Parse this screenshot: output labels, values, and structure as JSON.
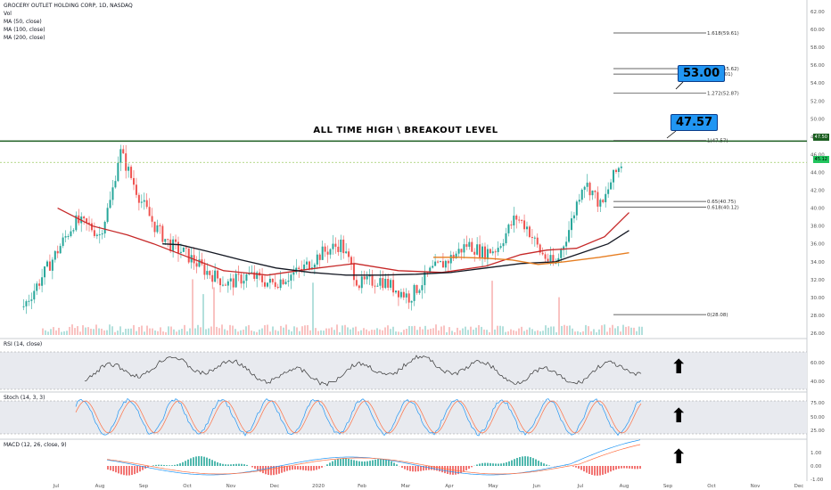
{
  "header": {
    "symbol_line": "GROCERY OUTLET HOLDING CORP, 1D, NASDAQ",
    "vol_label": "Vol",
    "ma50_label": "MA (50, close)",
    "ma100_label": "MA (100, close)",
    "ma200_label": "MA (200, close)"
  },
  "annotations": {
    "banner": "ALL TIME HIGH \\ BREAKOUT LEVEL",
    "callout_high": "53.00",
    "callout_breakout": "47.57"
  },
  "price_tags": {
    "breakout": "47.50",
    "last": "45.12"
  },
  "panes": {
    "rsi_label": "RSI (14, close)",
    "stoch_label": "Stoch (14, 3, 3)",
    "macd_label": "MACD (12, 26, close, 9)"
  },
  "colors": {
    "up": "#26a69a",
    "down": "#ef5350",
    "ma50": "#c62828",
    "ma100": "#131722",
    "ma200": "#e67e22",
    "breakout_line": "#1b5e20",
    "band": "#e8eaef",
    "callout": "#2196f3"
  },
  "chart_data": {
    "type": "candlestick",
    "x_ticks": [
      "Jul",
      "Aug",
      "Sep",
      "Oct",
      "Nov",
      "Dec",
      "2020",
      "Feb",
      "Mar",
      "Apr",
      "May",
      "Jun",
      "Jul",
      "Aug",
      "Sep",
      "Oct",
      "Nov",
      "Dec"
    ],
    "y_ticks": [
      26,
      28,
      30,
      32,
      34,
      36,
      38,
      40,
      42,
      44,
      46,
      48,
      50,
      52,
      54,
      56,
      58,
      60,
      62
    ],
    "y_range": [
      25.5,
      63
    ],
    "close_keypoints": [
      {
        "x": "2019-06-20",
        "y": 29
      },
      {
        "x": "2019-07-05",
        "y": 33
      },
      {
        "x": "2019-07-25",
        "y": 38.5
      },
      {
        "x": "2019-08-05",
        "y": 38
      },
      {
        "x": "2019-08-12",
        "y": 37
      },
      {
        "x": "2019-08-20",
        "y": 41
      },
      {
        "x": "2019-08-26",
        "y": 46.5
      },
      {
        "x": "2019-09-02",
        "y": 44
      },
      {
        "x": "2019-09-10",
        "y": 41
      },
      {
        "x": "2019-09-20",
        "y": 38
      },
      {
        "x": "2019-09-30",
        "y": 36
      },
      {
        "x": "2019-10-10",
        "y": 35
      },
      {
        "x": "2019-10-25",
        "y": 33
      },
      {
        "x": "2019-11-10",
        "y": 31.5
      },
      {
        "x": "2019-11-25",
        "y": 32.5
      },
      {
        "x": "2019-12-10",
        "y": 31.5
      },
      {
        "x": "2019-12-30",
        "y": 33
      },
      {
        "x": "2020-01-15",
        "y": 35
      },
      {
        "x": "2020-01-28",
        "y": 36
      },
      {
        "x": "2020-02-10",
        "y": 31.5
      },
      {
        "x": "2020-02-25",
        "y": 32
      },
      {
        "x": "2020-03-15",
        "y": 30
      },
      {
        "x": "2020-03-30",
        "y": 33
      },
      {
        "x": "2020-04-10",
        "y": 34
      },
      {
        "x": "2020-04-25",
        "y": 36
      },
      {
        "x": "2020-05-05",
        "y": 35
      },
      {
        "x": "2020-05-15",
        "y": 35.5
      },
      {
        "x": "2020-05-28",
        "y": 39
      },
      {
        "x": "2020-06-05",
        "y": 38
      },
      {
        "x": "2020-06-15",
        "y": 35
      },
      {
        "x": "2020-06-25",
        "y": 33.5
      },
      {
        "x": "2020-07-05",
        "y": 38
      },
      {
        "x": "2020-07-14",
        "y": 43
      },
      {
        "x": "2020-07-20",
        "y": 42
      },
      {
        "x": "2020-07-27",
        "y": 40
      },
      {
        "x": "2020-08-03",
        "y": 43
      },
      {
        "x": "2020-08-12",
        "y": 45.5
      }
    ],
    "ma_series": [
      {
        "name": "MA (50, close)",
        "points": [
          [
            0.35,
            40.0
          ],
          [
            0.55,
            38.0
          ],
          [
            0.75,
            37.0
          ],
          [
            0.9,
            36.0
          ],
          [
            1.1,
            34.5
          ],
          [
            1.3,
            33.0
          ],
          [
            1.55,
            32.5
          ],
          [
            1.8,
            33.2
          ],
          [
            2.05,
            33.8
          ],
          [
            2.3,
            33.0
          ],
          [
            2.55,
            32.8
          ],
          [
            2.8,
            33.5
          ],
          [
            3.0,
            34.8
          ],
          [
            3.15,
            35.3
          ],
          [
            3.32,
            35.5
          ],
          [
            3.48,
            36.8
          ],
          [
            3.62,
            39.5
          ]
        ]
      },
      {
        "name": "MA (100, close)",
        "points": [
          [
            0.95,
            36.0
          ],
          [
            1.05,
            35.9
          ],
          [
            1.2,
            35.2
          ],
          [
            1.4,
            34.2
          ],
          [
            1.6,
            33.3
          ],
          [
            1.8,
            32.8
          ],
          [
            2.0,
            32.5
          ],
          [
            2.2,
            32.5
          ],
          [
            2.4,
            32.6
          ],
          [
            2.6,
            32.8
          ],
          [
            2.8,
            33.3
          ],
          [
            3.0,
            33.8
          ],
          [
            3.2,
            34.0
          ],
          [
            3.35,
            35.0
          ],
          [
            3.5,
            36.0
          ],
          [
            3.62,
            37.5
          ]
        ]
      },
      {
        "name": "MA (200, close)",
        "points": [
          [
            2.5,
            34.5
          ],
          [
            2.65,
            34.5
          ],
          [
            2.8,
            34.4
          ],
          [
            2.95,
            34.2
          ],
          [
            3.1,
            33.7
          ],
          [
            3.25,
            34.0
          ],
          [
            3.45,
            34.5
          ],
          [
            3.62,
            35.0
          ]
        ]
      }
    ],
    "fibonacci": [
      {
        "label": "1.618(59.61)",
        "value": 59.61
      },
      {
        "label": "1.414(55.62)",
        "value": 55.62
      },
      {
        "label": "1.4(55.01)",
        "value": 55.01
      },
      {
        "label": "1.272(52.87)",
        "value": 52.87
      },
      {
        "label": "1(47.57)",
        "value": 47.57
      },
      {
        "label": "0.65(40.75)",
        "value": 40.75
      },
      {
        "label": "0.618(40.12)",
        "value": 40.12
      },
      {
        "label": "0(28.08)",
        "value": 28.08
      }
    ],
    "horizontal_levels": [
      {
        "label": "47.50",
        "value": 47.5
      },
      {
        "label": "45.12",
        "value": 45.12
      }
    ],
    "rsi": {
      "label": "RSI (14, close)",
      "y_ticks": [
        40.0,
        60.0
      ],
      "band": [
        30,
        70
      ]
    },
    "stoch": {
      "label": "Stoch (14, 3, 3)",
      "y_ticks": [
        25.0,
        50.0,
        75.0
      ],
      "band": [
        20,
        80
      ]
    },
    "macd": {
      "label": "MACD (12, 26, close, 9)",
      "y_ticks": [
        -1.0,
        0.0,
        1.0
      ]
    }
  }
}
